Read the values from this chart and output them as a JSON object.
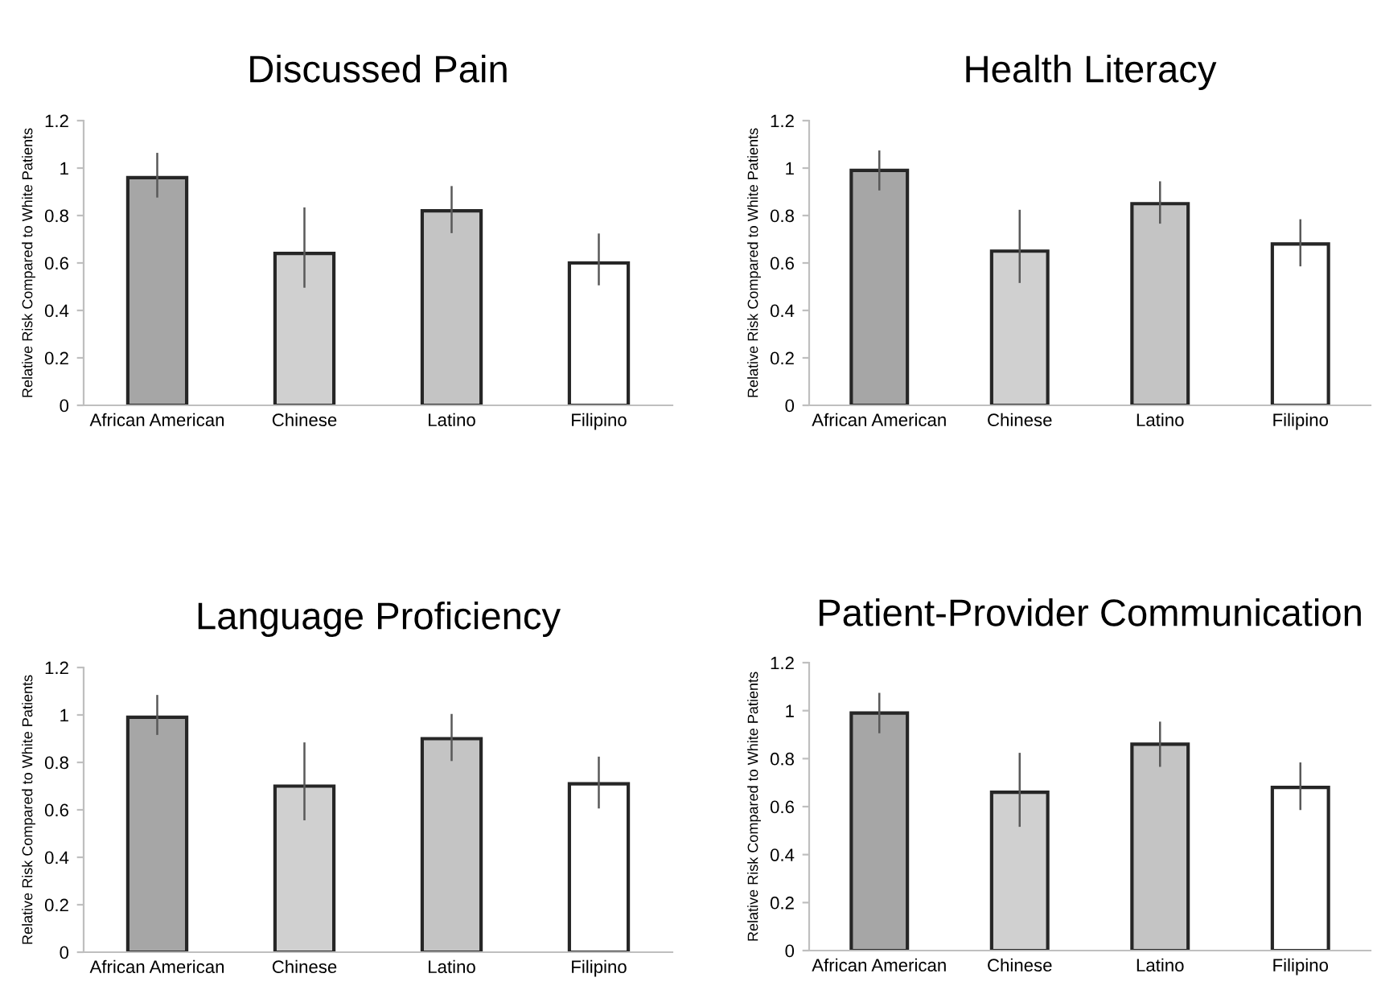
{
  "chart_data": [
    {
      "type": "bar",
      "title": "Discussed Pain",
      "ylabel": "Relative Risk Compared to White Patients",
      "categories": [
        "African American",
        "Chinese",
        "Latino",
        "Filipino"
      ],
      "values": [
        0.96,
        0.64,
        0.82,
        0.6
      ],
      "errors": [
        [
          0.88,
          1.06
        ],
        [
          0.5,
          0.83
        ],
        [
          0.73,
          0.92
        ],
        [
          0.51,
          0.72
        ]
      ],
      "colors": [
        "#a6a6a6",
        "#d0d0d0",
        "#c4c4c4",
        "#ffffff"
      ],
      "ylim": [
        0,
        1.2
      ],
      "yticks": [
        0,
        0.2,
        0.4,
        0.6,
        0.8,
        1,
        1.2
      ],
      "grid": false,
      "legend": false
    },
    {
      "type": "bar",
      "title": "Health Literacy",
      "ylabel": "Relative Risk Compared to White Patients",
      "categories": [
        "African American",
        "Chinese",
        "Latino",
        "Filipino"
      ],
      "values": [
        0.99,
        0.65,
        0.85,
        0.68
      ],
      "errors": [
        [
          0.91,
          1.07
        ],
        [
          0.52,
          0.82
        ],
        [
          0.77,
          0.94
        ],
        [
          0.59,
          0.78
        ]
      ],
      "colors": [
        "#a6a6a6",
        "#d0d0d0",
        "#c4c4c4",
        "#ffffff"
      ],
      "ylim": [
        0,
        1.2
      ],
      "yticks": [
        0,
        0.2,
        0.4,
        0.6,
        0.8,
        1,
        1.2
      ],
      "grid": false,
      "legend": false
    },
    {
      "type": "bar",
      "title": "Language Proficiency",
      "ylabel": "Relative Risk Compared to White Patients",
      "categories": [
        "African American",
        "Chinese",
        "Latino",
        "Filipino"
      ],
      "values": [
        0.99,
        0.7,
        0.9,
        0.71
      ],
      "errors": [
        [
          0.92,
          1.08
        ],
        [
          0.56,
          0.88
        ],
        [
          0.81,
          1.0
        ],
        [
          0.61,
          0.82
        ]
      ],
      "colors": [
        "#a6a6a6",
        "#d0d0d0",
        "#c4c4c4",
        "#ffffff"
      ],
      "ylim": [
        0,
        1.2
      ],
      "yticks": [
        0,
        0.2,
        0.4,
        0.6,
        0.8,
        1,
        1.2
      ],
      "grid": false,
      "legend": false
    },
    {
      "type": "bar",
      "title": "Patient-Provider Communication",
      "ylabel": "Relative Risk Compared to White Patients",
      "categories": [
        "African American",
        "Chinese",
        "Latino",
        "Filipino"
      ],
      "values": [
        0.99,
        0.66,
        0.86,
        0.68
      ],
      "errors": [
        [
          0.91,
          1.07
        ],
        [
          0.52,
          0.82
        ],
        [
          0.77,
          0.95
        ],
        [
          0.59,
          0.78
        ]
      ],
      "colors": [
        "#a6a6a6",
        "#d0d0d0",
        "#c4c4c4",
        "#ffffff"
      ],
      "ylim": [
        0,
        1.2
      ],
      "yticks": [
        0,
        0.2,
        0.4,
        0.6,
        0.8,
        1,
        1.2
      ],
      "grid": false,
      "legend": false
    }
  ]
}
